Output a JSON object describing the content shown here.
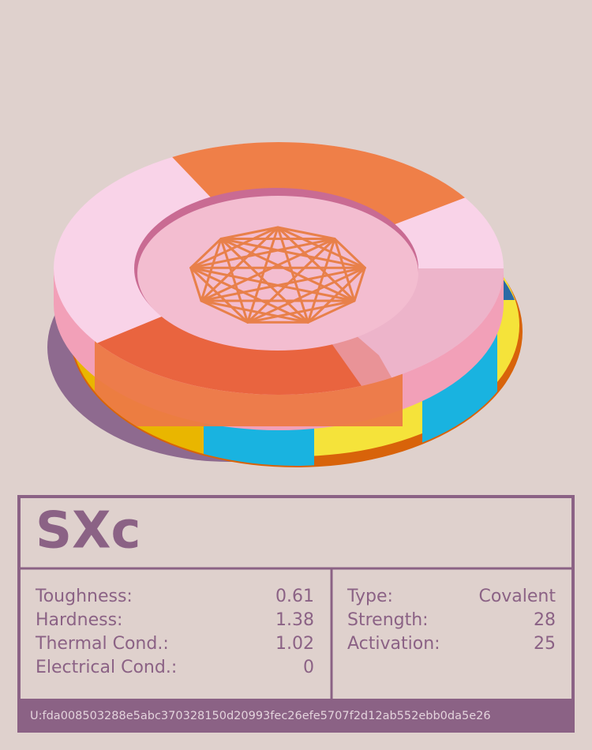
{
  "card": {
    "title": "SXc",
    "left_stats": [
      {
        "label": "Toughness:",
        "value": 0.61
      },
      {
        "label": "Hardness:",
        "value": 1.38
      },
      {
        "label": "Thermal Cond.:",
        "value": 1.02
      },
      {
        "label": "Electrical Cond.:",
        "value": 0
      }
    ],
    "right_stats": [
      {
        "label": "Type:",
        "value": "Covalent"
      },
      {
        "label": "Strength:",
        "value": 28
      },
      {
        "label": "Activation:",
        "value": 25
      }
    ],
    "footer": "U:fda008503288e5abc370328150d20993fec26efe5707f2d12ab552ebb0da5e26"
  }
}
